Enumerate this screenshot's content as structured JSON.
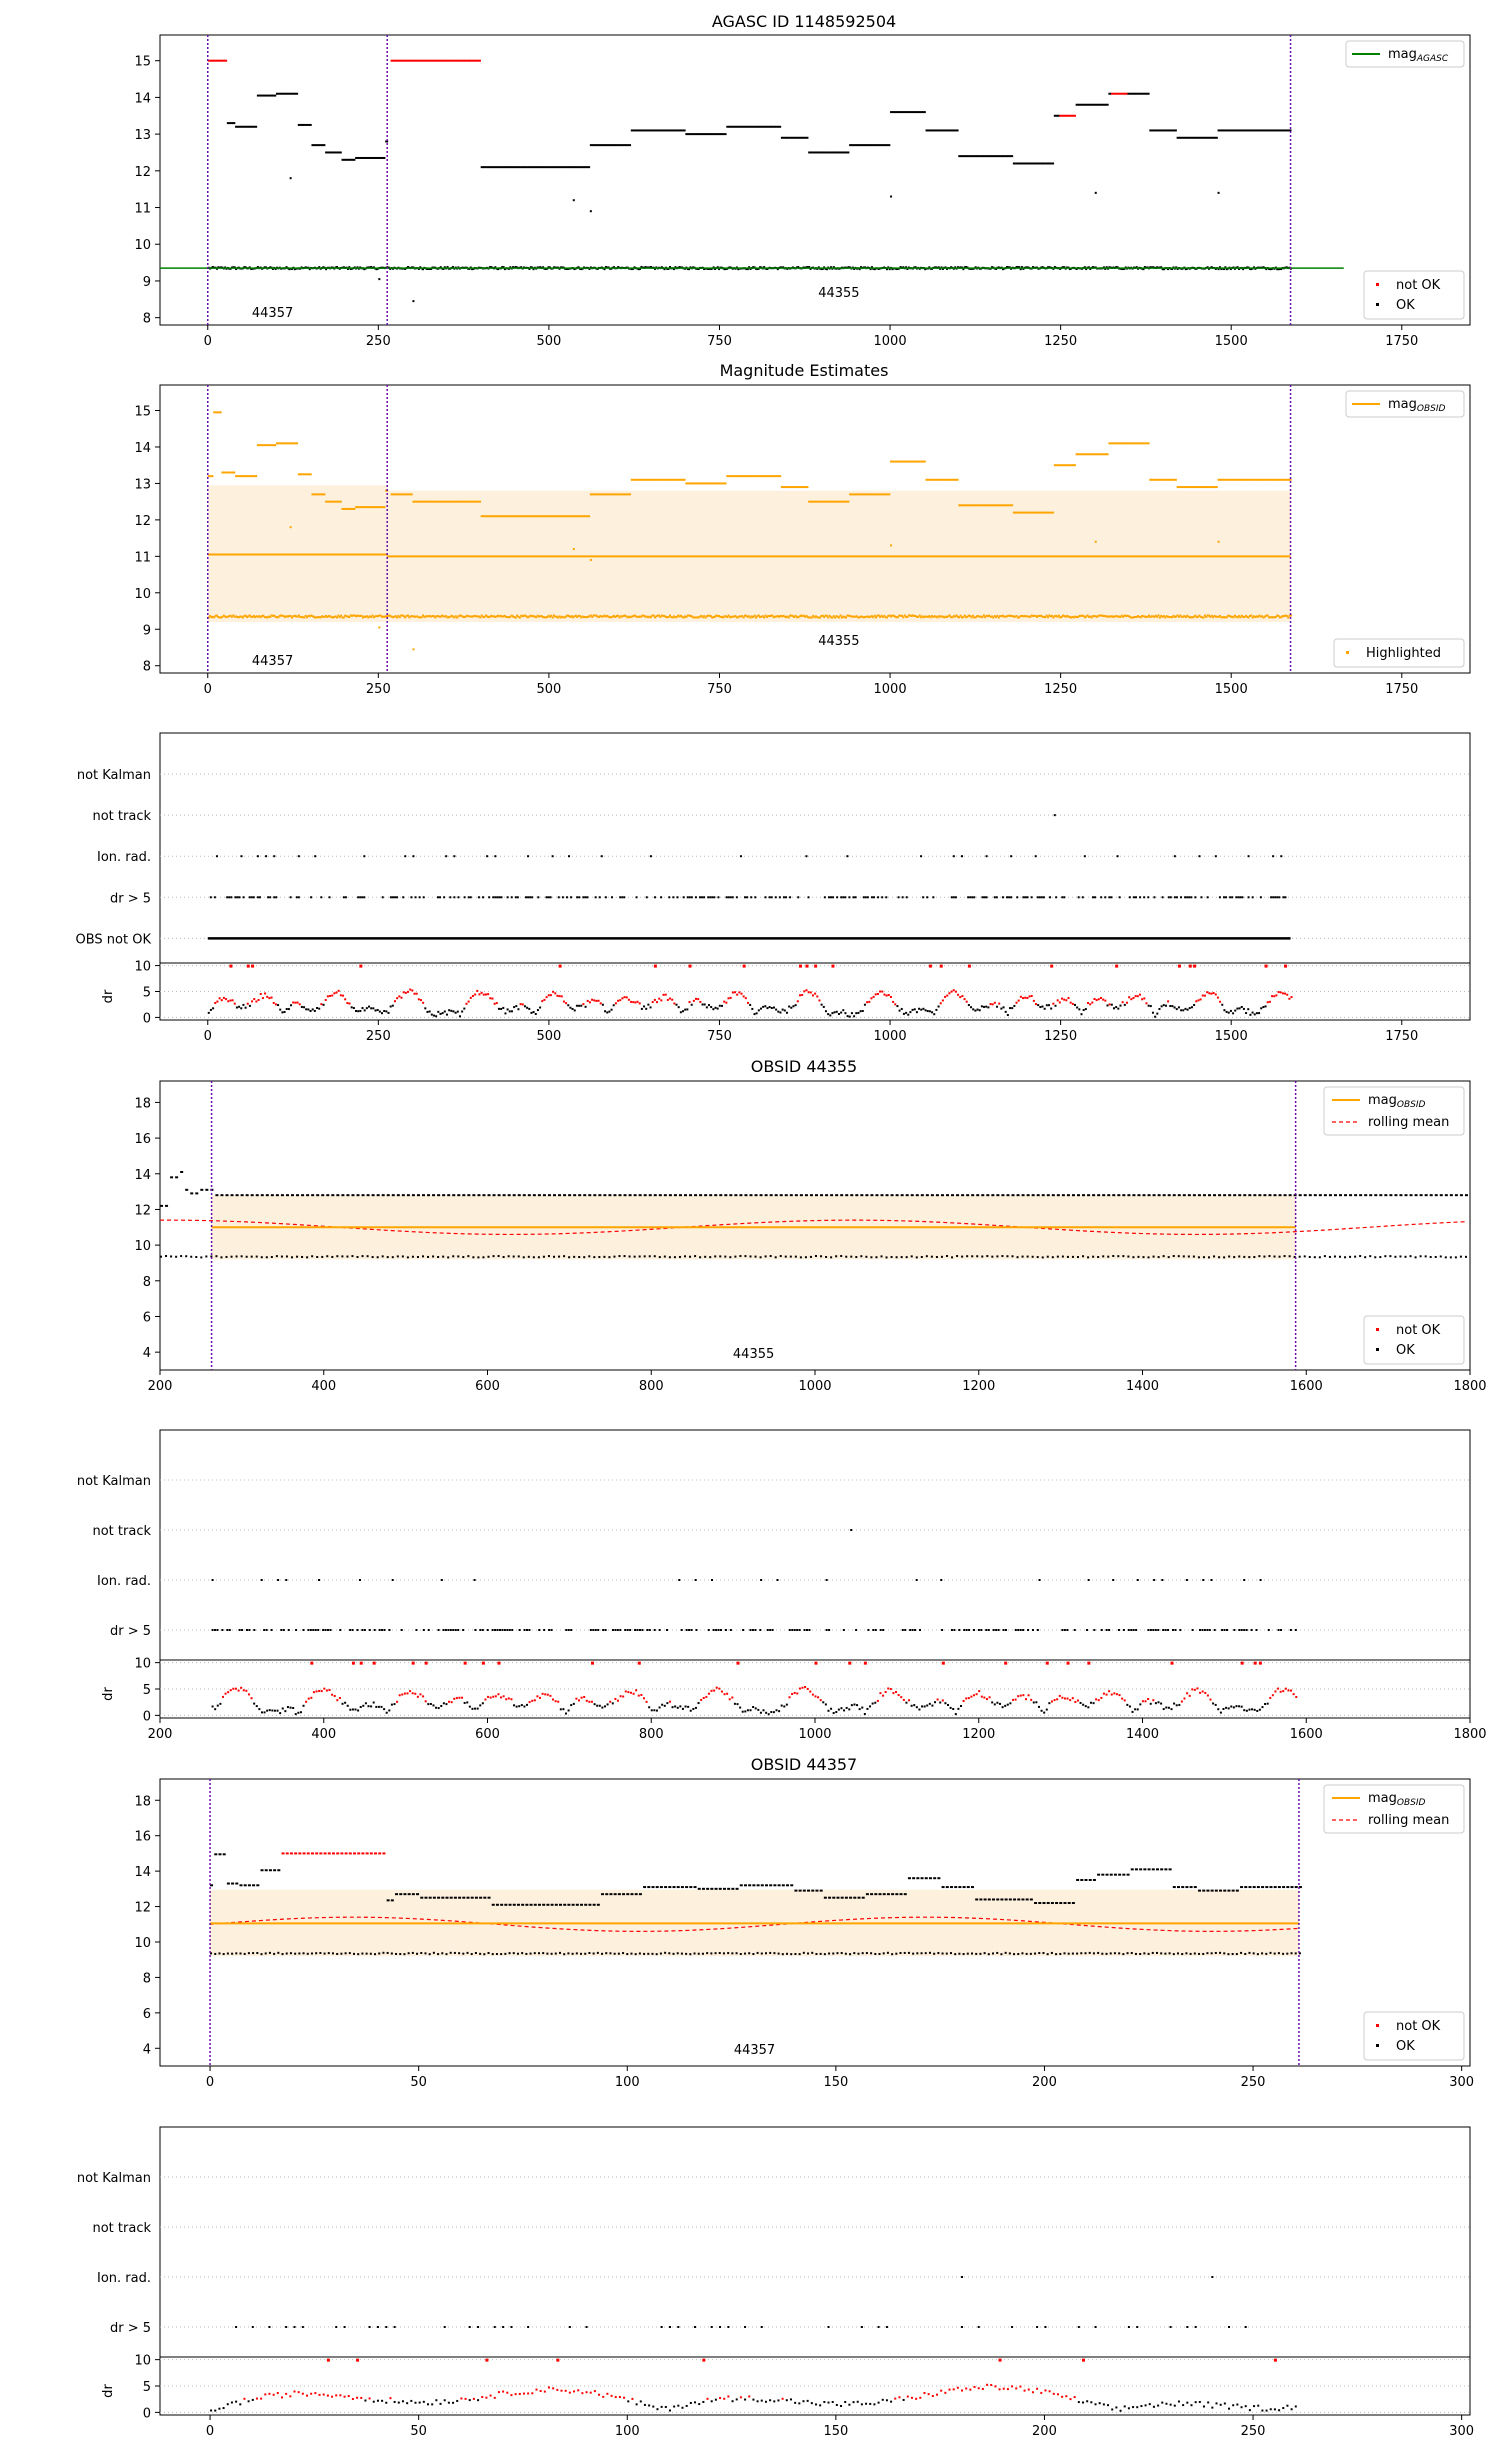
{
  "figure": {
    "title": "AGASC ID 1148592504",
    "panels": {
      "p1": {
        "title": "AGASC ID 1148592504",
        "legend_line": "mag_AGASC",
        "legend_points": [
          "not OK",
          "OK"
        ],
        "obsid_labels": [
          "44357",
          "44355"
        ]
      },
      "p2": {
        "title": "Magnitude Estimates",
        "legend_line": "mag_OBSID",
        "legend_points": [
          "Highlighted"
        ],
        "obsid_labels": [
          "44357",
          "44355"
        ]
      },
      "p4": {
        "title": "OBSID 44355",
        "legend_lines": [
          "mag_OBSID",
          "rolling mean"
        ],
        "legend_points": [
          "not OK",
          "OK"
        ],
        "obsid_labels": [
          "44355"
        ]
      },
      "p6": {
        "title": "OBSID 44357",
        "legend_lines": [
          "mag_OBSID",
          "rolling mean"
        ],
        "legend_points": [
          "not OK",
          "OK"
        ],
        "obsid_labels": [
          "44357"
        ]
      },
      "flags": {
        "labels": [
          "not Kalman",
          "not track",
          "Ion. rad.",
          "dr > 5",
          "OBS not OK"
        ],
        "dr_label": "dr"
      }
    }
  },
  "chart_data": [
    {
      "type": "scatter",
      "title": "AGASC ID 1148592504",
      "xlim": [
        -70,
        1850
      ],
      "ylim": [
        7.8,
        15.7
      ],
      "xticks": [
        0,
        250,
        500,
        750,
        1000,
        1250,
        1500,
        1750
      ],
      "yticks": [
        8,
        9,
        10,
        11,
        12,
        13,
        14,
        15
      ],
      "series": [
        {
          "name": "mag_AGASC",
          "kind": "line",
          "color": "#008000",
          "value": 9.35,
          "x_range": [
            -70,
            1665
          ]
        },
        {
          "name": "not OK",
          "kind": "points",
          "color": "#ff0000"
        },
        {
          "name": "OK",
          "kind": "points",
          "color": "#000000"
        }
      ],
      "obsids": [
        {
          "label": "44357",
          "x_start": 0,
          "x_end": 263
        },
        {
          "label": "44355",
          "x_start": 263,
          "x_end": 1587
        }
      ],
      "legend": [
        "top-right",
        "bottom-right"
      ]
    },
    {
      "type": "scatter",
      "title": "Magnitude Estimates",
      "xlim": [
        -70,
        1850
      ],
      "ylim": [
        7.8,
        15.7
      ],
      "xticks": [
        0,
        250,
        500,
        750,
        1000,
        1250,
        1500,
        1750
      ],
      "yticks": [
        8,
        9,
        10,
        11,
        12,
        13,
        14,
        15
      ],
      "series": [
        {
          "name": "mag_OBSID",
          "kind": "line",
          "color": "#ffa500",
          "segments": [
            {
              "x": [
                0,
                263
              ],
              "value": 11.05,
              "band": [
                9.2,
                12.95
              ]
            },
            {
              "x": [
                263,
                1587
              ],
              "value": 11.0,
              "band": [
                9.2,
                12.8
              ]
            }
          ]
        },
        {
          "name": "Highlighted",
          "kind": "points",
          "color": "#ffa500"
        }
      ],
      "obsids": [
        {
          "label": "44357",
          "x_start": 0,
          "x_end": 263
        },
        {
          "label": "44355",
          "x_start": 263,
          "x_end": 1587
        }
      ],
      "legend": [
        "top-right",
        "bottom-right"
      ]
    },
    {
      "type": "scatter",
      "title": "",
      "xlim": [
        -70,
        1850
      ],
      "xticks": [
        0,
        250,
        500,
        750,
        1000,
        1250,
        1500,
        1750
      ],
      "categories": [
        "not Kalman",
        "not track",
        "Ion. rad.",
        "dr > 5",
        "OBS not OK"
      ],
      "dr_ylim": [
        -0.5,
        10.5
      ],
      "dr_yticks": [
        0,
        5,
        10
      ]
    },
    {
      "type": "scatter",
      "title": "OBSID 44355",
      "xlim": [
        200,
        1800
      ],
      "ylim": [
        3,
        19.2
      ],
      "xticks": [
        200,
        400,
        600,
        800,
        1000,
        1200,
        1400,
        1600,
        1800
      ],
      "yticks": [
        4,
        6,
        8,
        10,
        12,
        14,
        16,
        18
      ],
      "series": [
        {
          "name": "mag_OBSID",
          "kind": "line",
          "color": "#ffa500",
          "value": 11.0,
          "band": [
            9.2,
            12.8
          ],
          "x_range": [
            263,
            1587
          ]
        },
        {
          "name": "rolling mean",
          "kind": "dashed-line",
          "color": "#ff0000"
        },
        {
          "name": "not OK",
          "kind": "points",
          "color": "#ff0000"
        },
        {
          "name": "OK",
          "kind": "points",
          "color": "#000000"
        }
      ],
      "obsids": [
        {
          "label": "44355",
          "x_start": 263,
          "x_end": 1587
        }
      ],
      "legend": [
        "top-right",
        "bottom-right"
      ]
    },
    {
      "type": "scatter",
      "title": "",
      "xlim": [
        200,
        1800
      ],
      "xticks": [
        200,
        400,
        600,
        800,
        1000,
        1200,
        1400,
        1600,
        1800
      ],
      "categories": [
        "not Kalman",
        "not track",
        "Ion. rad.",
        "dr > 5"
      ],
      "dr_ylim": [
        -0.5,
        10.5
      ],
      "dr_yticks": [
        0,
        5,
        10
      ]
    },
    {
      "type": "scatter",
      "title": "OBSID 44357",
      "xlim": [
        -12,
        302
      ],
      "ylim": [
        3,
        19.2
      ],
      "xticks": [
        0,
        50,
        100,
        150,
        200,
        250,
        300
      ],
      "yticks": [
        4,
        6,
        8,
        10,
        12,
        14,
        16,
        18
      ],
      "series": [
        {
          "name": "mag_OBSID",
          "kind": "line",
          "color": "#ffa500",
          "value": 11.05,
          "band": [
            9.2,
            12.95
          ],
          "x_range": [
            0,
            261
          ]
        },
        {
          "name": "rolling mean",
          "kind": "dashed-line",
          "color": "#ff0000"
        },
        {
          "name": "not OK",
          "kind": "points",
          "color": "#ff0000"
        },
        {
          "name": "OK",
          "kind": "points",
          "color": "#000000"
        }
      ],
      "obsids": [
        {
          "label": "44357",
          "x_start": 0,
          "x_end": 261
        }
      ],
      "legend": [
        "top-right",
        "bottom-right"
      ]
    },
    {
      "type": "scatter",
      "title": "",
      "xlim": [
        -12,
        302
      ],
      "xticks": [
        0,
        50,
        100,
        150,
        200,
        250,
        300
      ],
      "categories": [
        "not Kalman",
        "not track",
        "Ion. rad.",
        "dr > 5"
      ],
      "dr_ylim": [
        -0.5,
        10.5
      ],
      "dr_yticks": [
        0,
        5,
        10
      ]
    }
  ],
  "colors": {
    "ok": "#000000",
    "not_ok": "#ff0000",
    "obsid": "#ffa500",
    "agasc": "#008000",
    "vline": "#6a0dad"
  }
}
